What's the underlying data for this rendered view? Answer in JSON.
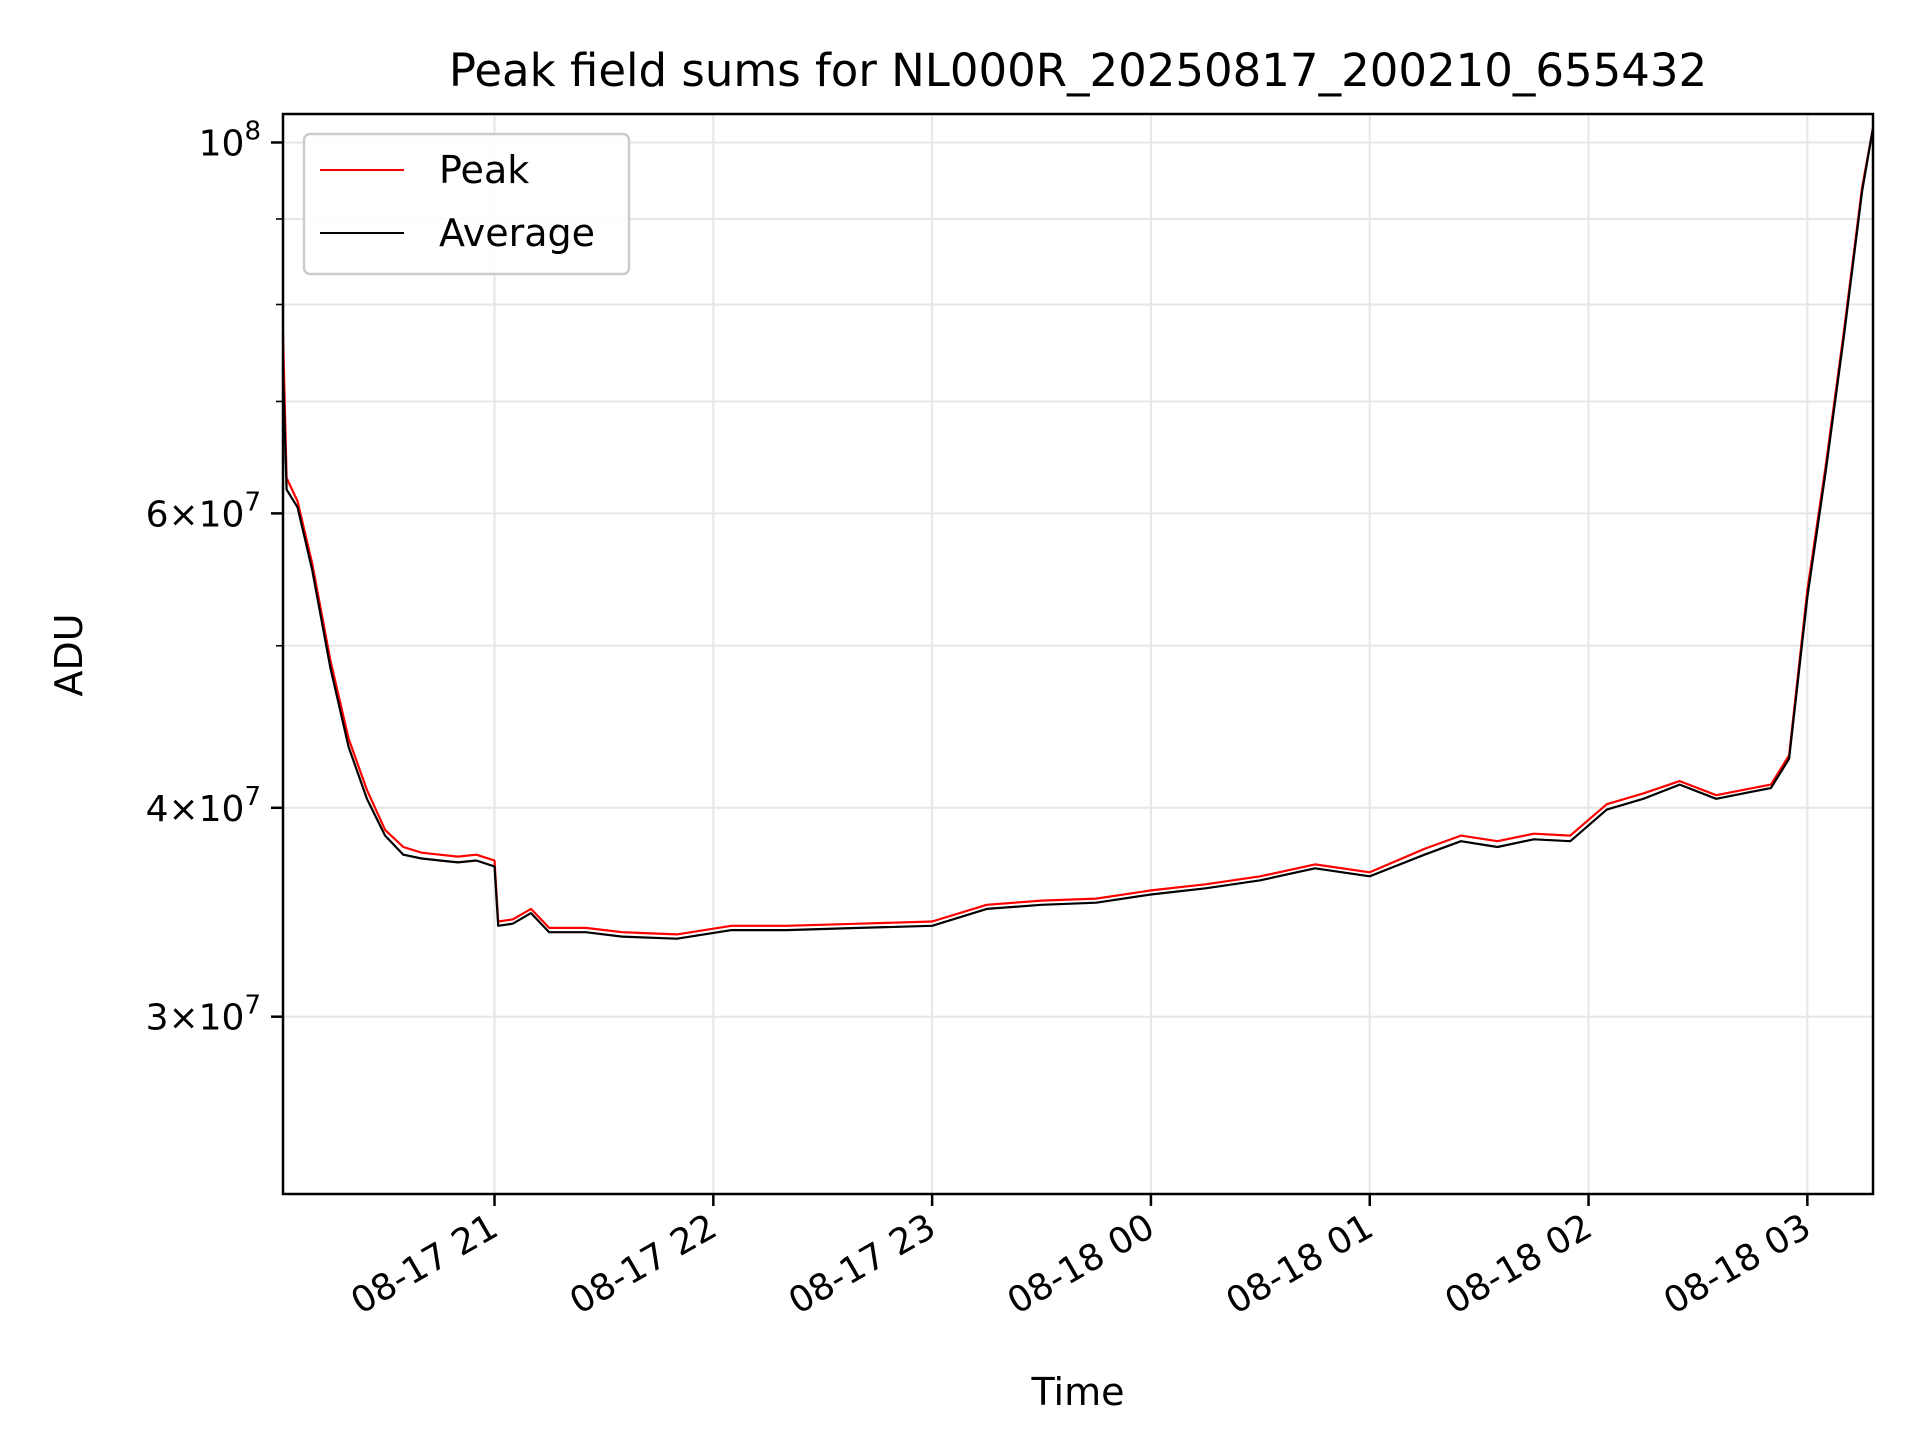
{
  "chart_data": {
    "type": "line",
    "title": "Peak field sums for NL000R_20250817_200210_655432",
    "xlabel": "Time",
    "ylabel": "ADU",
    "y_scale": "log",
    "ylim": [
      23500000,
      104000000
    ],
    "xlim": [
      "08-17 20:02",
      "08-18 03:18"
    ],
    "grid": true,
    "legend_position": "top-left",
    "x_ticks": [
      "08-17 21",
      "08-17 22",
      "08-17 23",
      "08-18 00",
      "08-18 01",
      "08-18 02",
      "08-18 03"
    ],
    "y_ticks": [
      {
        "value": 30000000,
        "mantissa": "3",
        "exponent": "7"
      },
      {
        "value": 40000000,
        "mantissa": "4",
        "exponent": "7"
      },
      {
        "value": 60000000,
        "mantissa": "6",
        "exponent": "7"
      },
      {
        "value": 100000000,
        "mantissa": "",
        "exponent": "8"
      }
    ],
    "x": [
      "08-17 20:02",
      "08-17 20:03",
      "08-17 20:06",
      "08-17 20:10",
      "08-17 20:15",
      "08-17 20:20",
      "08-17 20:25",
      "08-17 20:30",
      "08-17 20:35",
      "08-17 20:40",
      "08-17 20:45",
      "08-17 20:50",
      "08-17 20:55",
      "08-17 21:00",
      "08-17 21:01",
      "08-17 21:05",
      "08-17 21:10",
      "08-17 21:15",
      "08-17 21:25",
      "08-17 21:35",
      "08-17 21:50",
      "08-17 22:05",
      "08-17 22:20",
      "08-17 22:40",
      "08-17 23:00",
      "08-17 23:15",
      "08-17 23:30",
      "08-17 23:45",
      "08-18 00:00",
      "08-18 00:15",
      "08-18 00:30",
      "08-18 00:45",
      "08-18 01:00",
      "08-18 01:15",
      "08-18 01:25",
      "08-18 01:35",
      "08-18 01:45",
      "08-18 01:55",
      "08-18 02:05",
      "08-18 02:15",
      "08-18 02:25",
      "08-18 02:35",
      "08-18 02:45",
      "08-18 02:50",
      "08-18 02:55",
      "08-18 03:00",
      "08-18 03:05",
      "08-18 03:10",
      "08-18 03:15",
      "08-18 03:18"
    ],
    "series": [
      {
        "name": "Peak",
        "color": "#ff0000",
        "values": [
          77000000,
          63000000,
          61000000,
          56000000,
          49000000,
          44000000,
          41000000,
          38800000,
          37900000,
          37600000,
          37500000,
          37400000,
          37500000,
          37200000,
          34200000,
          34300000,
          34800000,
          33900000,
          33900000,
          33700000,
          33600000,
          34000000,
          34000000,
          34100000,
          34200000,
          35000000,
          35200000,
          35300000,
          35700000,
          36000000,
          36400000,
          37000000,
          36600000,
          37800000,
          38500000,
          38200000,
          38600000,
          38500000,
          40200000,
          40800000,
          41500000,
          40700000,
          41100000,
          41300000,
          43000000,
          54000000,
          64000000,
          77000000,
          94000000,
          102000000
        ]
      },
      {
        "name": "Average",
        "color": "#000000",
        "values": [
          73000000,
          62000000,
          60500000,
          55500000,
          48500000,
          43500000,
          40500000,
          38500000,
          37500000,
          37300000,
          37200000,
          37100000,
          37200000,
          36900000,
          34000000,
          34100000,
          34600000,
          33700000,
          33700000,
          33500000,
          33400000,
          33800000,
          33800000,
          33900000,
          34000000,
          34800000,
          35000000,
          35100000,
          35500000,
          35800000,
          36200000,
          36800000,
          36400000,
          37500000,
          38200000,
          37900000,
          38300000,
          38200000,
          39900000,
          40500000,
          41300000,
          40500000,
          40900000,
          41100000,
          42800000,
          53500000,
          63500000,
          76500000,
          93500000,
          102000000
        ]
      }
    ]
  }
}
